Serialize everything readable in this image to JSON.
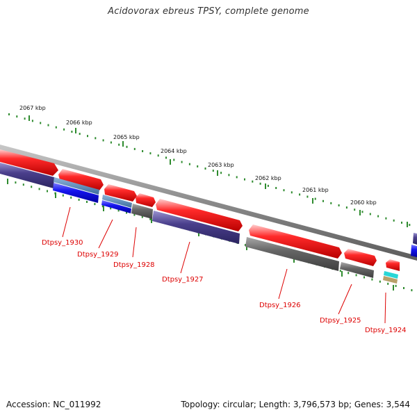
{
  "title": "Acidovorax ebreus TPSY, complete genome",
  "footer": {
    "accession": "Accession: NC_011992",
    "topology": "Topology: circular; Length: 3,796,573 bp; Genes: 3,544"
  },
  "colors": {
    "forward_gene": "#ee1111",
    "reverse_gene": "#4a3f8c",
    "grey_feature": "#666666",
    "blue_feature": "#1515ee",
    "backbone": "#888888",
    "tick": "#2e8b2e",
    "label": "#dd0000"
  },
  "kbp_marks": [
    "2067 kbp",
    "2066 kbp",
    "2065 kbp",
    "2064 kbp",
    "2063 kbp",
    "2062 kbp",
    "2061 kbp",
    "2060 kbp"
  ],
  "gene_labels": [
    "Dtpsy_1930",
    "Dtpsy_1929",
    "Dtpsy_1928",
    "Dtpsy_1927",
    "Dtpsy_1926",
    "Dtpsy_1925",
    "Dtpsy_1924"
  ]
}
